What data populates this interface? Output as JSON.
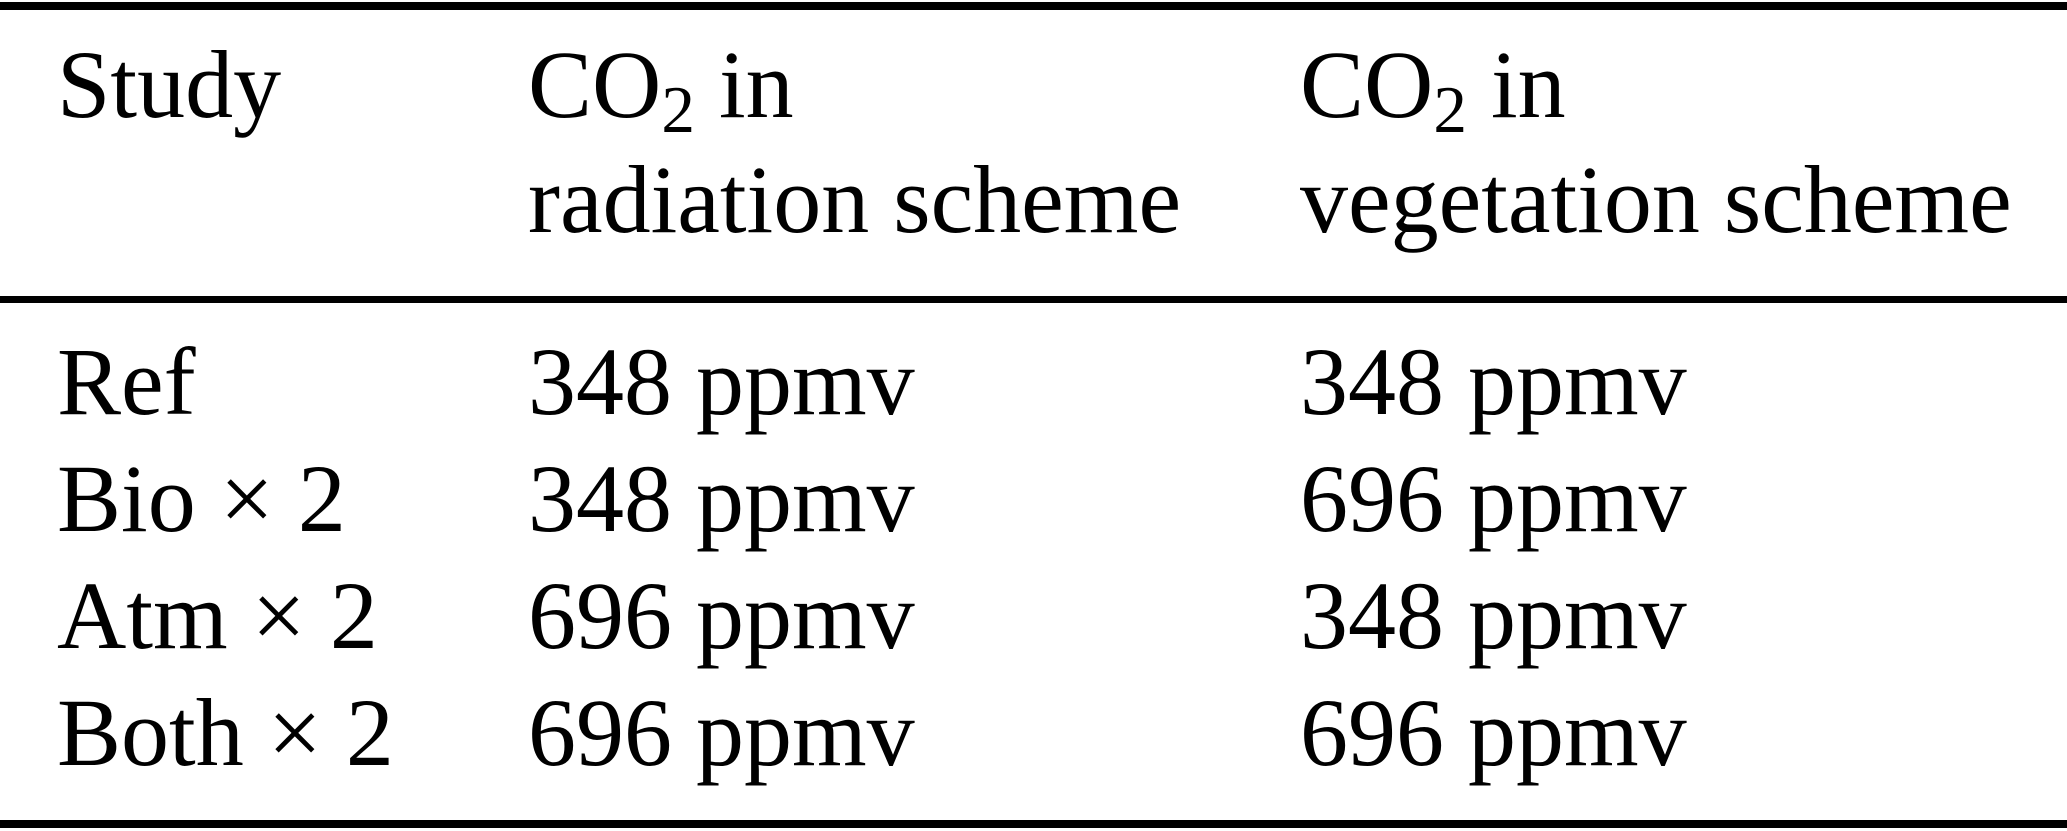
{
  "table": {
    "header": {
      "study": "Study",
      "radiation": {
        "prefix": "CO",
        "sub": "2",
        "suffix": " in",
        "line2": "radiation scheme"
      },
      "vegetation": {
        "prefix": "CO",
        "sub": "2",
        "suffix": " in",
        "line2": "vegetation scheme"
      }
    },
    "rows": [
      {
        "study": "Ref",
        "radiation": "348 ppmv",
        "vegetation": "348 ppmv"
      },
      {
        "study": "Bio × 2",
        "radiation": "348 ppmv",
        "vegetation": "696 ppmv"
      },
      {
        "study": "Atm × 2",
        "radiation": "696 ppmv",
        "vegetation": "348 ppmv"
      },
      {
        "study": "Both × 2",
        "radiation": "696 ppmv",
        "vegetation": "696 ppmv"
      }
    ],
    "unit": "ppmv"
  },
  "colors": {
    "text": "#000000",
    "background": "#ffffff",
    "rule": "#000000"
  }
}
